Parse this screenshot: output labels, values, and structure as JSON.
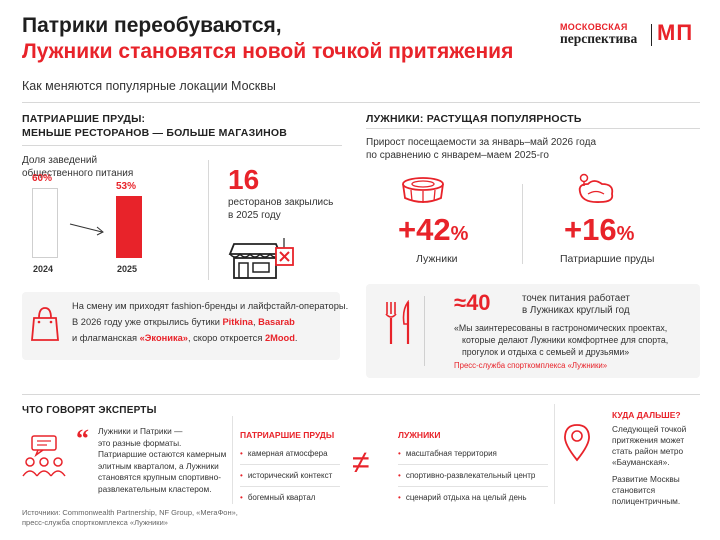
{
  "header": {
    "title_line1": "Патрики переобуваются,",
    "title_line2": "Лужники становятся новой точкой притяжения",
    "subtitle": "Как меняются популярные локации Москвы"
  },
  "logo": {
    "top": "МОСКОВСКАЯ",
    "bottom": "перспектива",
    "mark": "МП"
  },
  "colors": {
    "accent": "#e8232a",
    "panel": "#f4f4f4",
    "text": "#222222"
  },
  "patriarch": {
    "heading_line1": "ПАТРИАРШИЕ ПРУДЫ:",
    "heading_line2": "МЕНЬШЕ РЕСТОРАНОВ — БОЛЬШЕ МАГАЗИНОВ",
    "share_label_line1": "Доля заведений",
    "share_label_line2": "общественного питания",
    "bars": [
      {
        "year": "2024",
        "value_label": "60%",
        "value": 60
      },
      {
        "year": "2025",
        "value_label": "53%",
        "value": 53
      }
    ],
    "closed_number": "16",
    "closed_text_line1": "ресторанов закрылись",
    "closed_text_line2": "в 2025 году",
    "shop_icon": "shop-closed-icon",
    "bag_icon": "shopping-bag-icon",
    "fashion_line1": "На смену им приходят fashion-бренды и лайфстайл-операторы.",
    "fashion_line2_prefix": "В 2026 году уже открылись бутики ",
    "brand1": "Pitkina",
    "sep1": ", ",
    "brand2": "Basarab",
    "fashion_line3_prefix": "и флагманская ",
    "brand3": "«Эконика»",
    "fashion_line3_mid": ", скоро откроется ",
    "brand4": "2Mood",
    "fashion_line3_end": "."
  },
  "luzhniki": {
    "heading": "ЛУЖНИКИ: РАСТУЩАЯ ПОПУЛЯРНОСТЬ",
    "growth_line1": "Прирост посещаемости за январь–май 2026 года",
    "growth_line2": "по сравнению с январем–маем 2025-го",
    "stats": [
      {
        "value": "+42",
        "unit": "%",
        "label": "Лужники",
        "icon": "stadium-icon"
      },
      {
        "value": "+16",
        "unit": "%",
        "label": "Патриаршие пруды",
        "icon": "pond-icon"
      }
    ],
    "food_count": "≈40",
    "food_text_line1": "точек питания работает",
    "food_text_line2": "в Лужниках круглый год",
    "quote_line1": "«Мы заинтересованы в гастрономических проектах,",
    "quote_line2": "которые делают Лужники комфортнее для спорта,",
    "quote_line3": "прогулок и отдыха с семьей и друзьями»",
    "quote_source": "Пресс-служба спорткомплекса «Лужники»",
    "cutlery_icon": "cutlery-icon"
  },
  "experts": {
    "heading": "ЧТО ГОВОРЯТ ЭКСПЕРТЫ",
    "icon": "people-chat-icon",
    "quote_lines": [
      "Лужники и Патрики —",
      "это разные форматы.",
      "Патриаршие остаются камерным",
      "элитным кварталом, а Лужники",
      "становятся крупным спортивно-",
      "развлекательным кластером."
    ],
    "col1_title": "ПАТРИАРШИЕ ПРУДЫ",
    "col1_items": [
      "камерная атмосфера",
      "исторический контекст",
      "богемный квартал"
    ],
    "col2_title": "ЛУЖНИКИ",
    "col2_items": [
      "масштабная территория",
      "спортивно-развлекательный центр",
      "сценарий отдыха на целый день"
    ],
    "neq": "≠"
  },
  "next": {
    "heading": "КУДА ДАЛЬШЕ?",
    "icon": "location-pin-icon",
    "text_lines": [
      "Следующей точкой",
      "притяжения может",
      "стать район метро",
      "«Бауманская»."
    ],
    "text2_lines": [
      "Развитие Москвы",
      "становится",
      "полицентричным."
    ]
  },
  "sources": {
    "line1": "Источники: Commonwealth Partnership, NF Group, «МегаФон»,",
    "line2": "пресс-служба спорткомплекса «Лужники»"
  }
}
